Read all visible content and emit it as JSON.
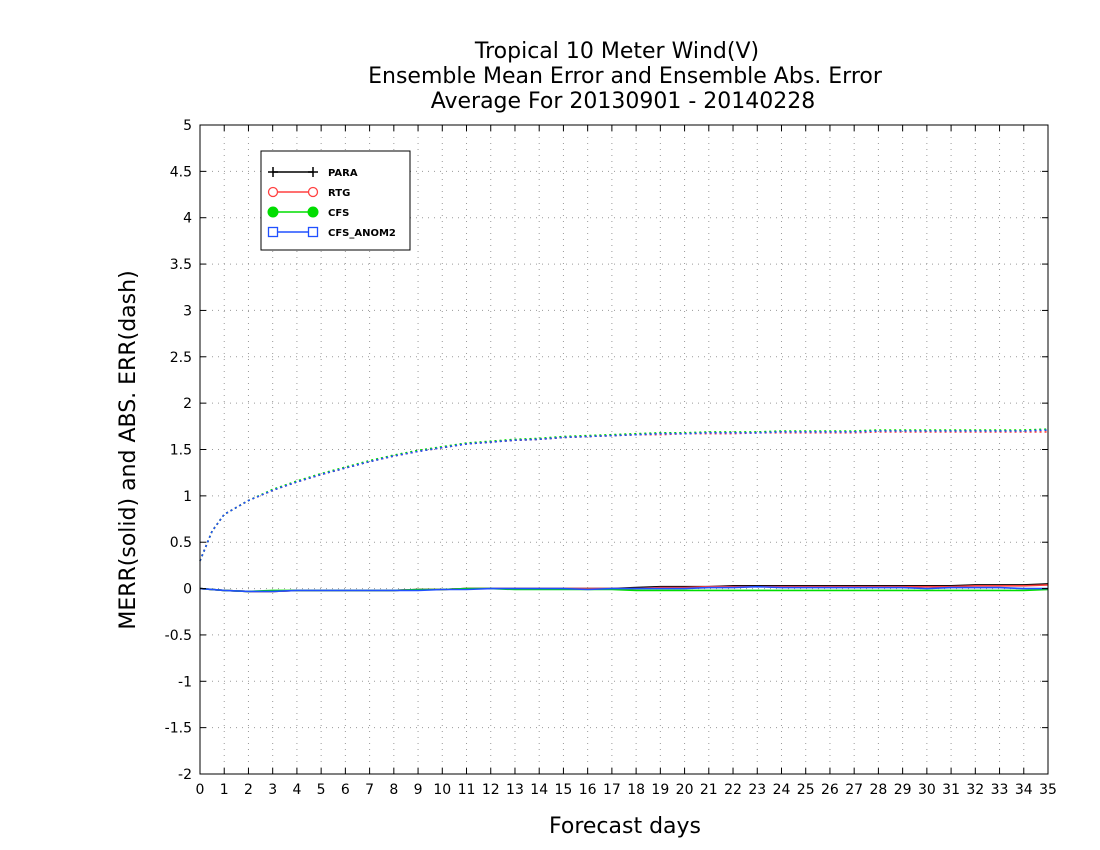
{
  "chart_data": {
    "type": "line",
    "title_lines": [
      "Tropical 10 Meter Wind(V)",
      "Ensemble Mean Error and Ensemble Abs. Error",
      "Average For 20130901 - 20140228"
    ],
    "xlabel": "Forecast days",
    "ylabel": "MERR(solid) and ABS. ERR(dash)",
    "xlim": [
      0,
      35
    ],
    "ylim": [
      -2,
      5
    ],
    "x_ticks": [
      "0",
      "1",
      "2",
      "3",
      "4",
      "5",
      "6",
      "7",
      "8",
      "9",
      "10",
      "11",
      "12",
      "13",
      "14",
      "15",
      "16",
      "17",
      "18",
      "19",
      "20",
      "21",
      "22",
      "23",
      "24",
      "25",
      "26",
      "27",
      "28",
      "29",
      "30",
      "31",
      "32",
      "33",
      "34",
      "35"
    ],
    "y_ticks": [
      "5",
      "4.5",
      "4",
      "3.5",
      "3",
      "2.5",
      "2",
      "1.5",
      "1",
      "0.5",
      "0",
      "-0.5",
      "-1",
      "-1.5",
      "-2"
    ],
    "grid": "dotted",
    "legend_position": "top-left",
    "series": [
      {
        "name": "PARA",
        "color": "#000000",
        "marker": "plus",
        "merr": [
          [
            0,
            0.0
          ],
          [
            1,
            -0.02
          ],
          [
            2,
            -0.03
          ],
          [
            3,
            -0.03
          ],
          [
            4,
            -0.02
          ],
          [
            5,
            -0.02
          ],
          [
            6,
            -0.02
          ],
          [
            7,
            -0.02
          ],
          [
            8,
            -0.02
          ],
          [
            9,
            -0.01
          ],
          [
            10,
            -0.01
          ],
          [
            11,
            0.0
          ],
          [
            12,
            0.0
          ],
          [
            13,
            0.0
          ],
          [
            14,
            0.0
          ],
          [
            15,
            0.0
          ],
          [
            16,
            0.0
          ],
          [
            17,
            0.0
          ],
          [
            18,
            0.01
          ],
          [
            19,
            0.02
          ],
          [
            20,
            0.02
          ],
          [
            21,
            0.02
          ],
          [
            22,
            0.03
          ],
          [
            23,
            0.03
          ],
          [
            24,
            0.03
          ],
          [
            25,
            0.03
          ],
          [
            26,
            0.03
          ],
          [
            27,
            0.03
          ],
          [
            28,
            0.03
          ],
          [
            29,
            0.03
          ],
          [
            30,
            0.03
          ],
          [
            31,
            0.03
          ],
          [
            32,
            0.04
          ],
          [
            33,
            0.04
          ],
          [
            34,
            0.04
          ],
          [
            35,
            0.05
          ]
        ],
        "abs_err": [
          [
            0,
            0.3
          ],
          [
            0.5,
            0.62
          ],
          [
            1,
            0.8
          ],
          [
            2,
            0.95
          ],
          [
            3,
            1.06
          ],
          [
            4,
            1.15
          ],
          [
            5,
            1.23
          ],
          [
            6,
            1.3
          ],
          [
            7,
            1.37
          ],
          [
            8,
            1.43
          ],
          [
            9,
            1.48
          ],
          [
            10,
            1.52
          ],
          [
            11,
            1.56
          ],
          [
            12,
            1.58
          ],
          [
            13,
            1.6
          ],
          [
            14,
            1.61
          ],
          [
            15,
            1.63
          ],
          [
            16,
            1.64
          ],
          [
            17,
            1.65
          ],
          [
            18,
            1.66
          ],
          [
            19,
            1.67
          ],
          [
            20,
            1.67
          ],
          [
            21,
            1.68
          ],
          [
            22,
            1.68
          ],
          [
            23,
            1.68
          ],
          [
            24,
            1.69
          ],
          [
            25,
            1.69
          ],
          [
            26,
            1.69
          ],
          [
            27,
            1.69
          ],
          [
            28,
            1.7
          ],
          [
            29,
            1.7
          ],
          [
            30,
            1.7
          ],
          [
            31,
            1.7
          ],
          [
            32,
            1.7
          ],
          [
            33,
            1.7
          ],
          [
            34,
            1.7
          ],
          [
            35,
            1.71
          ]
        ]
      },
      {
        "name": "RTG",
        "color": "#ff4040",
        "marker": "open-circle",
        "merr": [
          [
            0,
            0.0
          ],
          [
            1,
            -0.02
          ],
          [
            2,
            -0.03
          ],
          [
            3,
            -0.03
          ],
          [
            4,
            -0.02
          ],
          [
            5,
            -0.02
          ],
          [
            6,
            -0.02
          ],
          [
            7,
            -0.02
          ],
          [
            8,
            -0.02
          ],
          [
            9,
            -0.01
          ],
          [
            10,
            -0.01
          ],
          [
            11,
            0.0
          ],
          [
            12,
            0.0
          ],
          [
            13,
            0.0
          ],
          [
            14,
            0.0
          ],
          [
            15,
            0.0
          ],
          [
            16,
            0.0
          ],
          [
            17,
            0.0
          ],
          [
            18,
            0.0
          ],
          [
            19,
            0.01
          ],
          [
            20,
            0.01
          ],
          [
            21,
            0.02
          ],
          [
            22,
            0.02
          ],
          [
            23,
            0.02
          ],
          [
            24,
            0.02
          ],
          [
            25,
            0.02
          ],
          [
            26,
            0.02
          ],
          [
            27,
            0.02
          ],
          [
            28,
            0.02
          ],
          [
            29,
            0.02
          ],
          [
            30,
            0.02
          ],
          [
            31,
            0.02
          ],
          [
            32,
            0.03
          ],
          [
            33,
            0.03
          ],
          [
            34,
            0.03
          ],
          [
            35,
            0.04
          ]
        ],
        "abs_err": [
          [
            0,
            0.3
          ],
          [
            0.5,
            0.62
          ],
          [
            1,
            0.8
          ],
          [
            2,
            0.95
          ],
          [
            3,
            1.06
          ],
          [
            4,
            1.15
          ],
          [
            5,
            1.23
          ],
          [
            6,
            1.3
          ],
          [
            7,
            1.37
          ],
          [
            8,
            1.43
          ],
          [
            9,
            1.48
          ],
          [
            10,
            1.52
          ],
          [
            11,
            1.56
          ],
          [
            12,
            1.58
          ],
          [
            13,
            1.6
          ],
          [
            14,
            1.61
          ],
          [
            15,
            1.63
          ],
          [
            16,
            1.64
          ],
          [
            17,
            1.65
          ],
          [
            18,
            1.66
          ],
          [
            19,
            1.66
          ],
          [
            20,
            1.67
          ],
          [
            21,
            1.67
          ],
          [
            22,
            1.67
          ],
          [
            23,
            1.68
          ],
          [
            24,
            1.68
          ],
          [
            25,
            1.68
          ],
          [
            26,
            1.68
          ],
          [
            27,
            1.68
          ],
          [
            28,
            1.69
          ],
          [
            29,
            1.69
          ],
          [
            30,
            1.69
          ],
          [
            31,
            1.69
          ],
          [
            32,
            1.69
          ],
          [
            33,
            1.69
          ],
          [
            34,
            1.69
          ],
          [
            35,
            1.69
          ]
        ]
      },
      {
        "name": "CFS",
        "color": "#00dd00",
        "marker": "filled-circle",
        "merr": [
          [
            0,
            0.0
          ],
          [
            1,
            -0.02
          ],
          [
            2,
            -0.03
          ],
          [
            3,
            -0.02
          ],
          [
            4,
            -0.02
          ],
          [
            5,
            -0.02
          ],
          [
            6,
            -0.02
          ],
          [
            7,
            -0.02
          ],
          [
            8,
            -0.02
          ],
          [
            9,
            -0.01
          ],
          [
            10,
            -0.01
          ],
          [
            11,
            0.0
          ],
          [
            12,
            0.0
          ],
          [
            13,
            -0.01
          ],
          [
            14,
            -0.01
          ],
          [
            15,
            -0.01
          ],
          [
            16,
            -0.01
          ],
          [
            17,
            -0.01
          ],
          [
            18,
            -0.02
          ],
          [
            19,
            -0.02
          ],
          [
            20,
            -0.02
          ],
          [
            21,
            -0.02
          ],
          [
            22,
            -0.02
          ],
          [
            23,
            -0.02
          ],
          [
            24,
            -0.02
          ],
          [
            25,
            -0.02
          ],
          [
            26,
            -0.02
          ],
          [
            27,
            -0.02
          ],
          [
            28,
            -0.02
          ],
          [
            29,
            -0.02
          ],
          [
            30,
            -0.02
          ],
          [
            31,
            -0.02
          ],
          [
            32,
            -0.02
          ],
          [
            33,
            -0.02
          ],
          [
            34,
            -0.02
          ],
          [
            35,
            -0.01
          ]
        ],
        "abs_err": [
          [
            0,
            0.3
          ],
          [
            0.5,
            0.62
          ],
          [
            1,
            0.8
          ],
          [
            2,
            0.95
          ],
          [
            3,
            1.07
          ],
          [
            4,
            1.16
          ],
          [
            5,
            1.24
          ],
          [
            6,
            1.31
          ],
          [
            7,
            1.38
          ],
          [
            8,
            1.44
          ],
          [
            9,
            1.49
          ],
          [
            10,
            1.53
          ],
          [
            11,
            1.57
          ],
          [
            12,
            1.59
          ],
          [
            13,
            1.61
          ],
          [
            14,
            1.62
          ],
          [
            15,
            1.64
          ],
          [
            16,
            1.65
          ],
          [
            17,
            1.66
          ],
          [
            18,
            1.67
          ],
          [
            19,
            1.68
          ],
          [
            20,
            1.68
          ],
          [
            21,
            1.69
          ],
          [
            22,
            1.69
          ],
          [
            23,
            1.69
          ],
          [
            24,
            1.7
          ],
          [
            25,
            1.7
          ],
          [
            26,
            1.7
          ],
          [
            27,
            1.7
          ],
          [
            28,
            1.71
          ],
          [
            29,
            1.71
          ],
          [
            30,
            1.71
          ],
          [
            31,
            1.71
          ],
          [
            32,
            1.71
          ],
          [
            33,
            1.71
          ],
          [
            34,
            1.71
          ],
          [
            35,
            1.72
          ]
        ]
      },
      {
        "name": "CFS_ANOM2",
        "color": "#2050ff",
        "marker": "open-square",
        "merr": [
          [
            0,
            0.0
          ],
          [
            1,
            -0.02
          ],
          [
            2,
            -0.03
          ],
          [
            3,
            -0.03
          ],
          [
            4,
            -0.02
          ],
          [
            5,
            -0.02
          ],
          [
            6,
            -0.02
          ],
          [
            7,
            -0.02
          ],
          [
            8,
            -0.02
          ],
          [
            9,
            -0.02
          ],
          [
            10,
            -0.01
          ],
          [
            11,
            -0.01
          ],
          [
            12,
            0.0
          ],
          [
            13,
            0.0
          ],
          [
            14,
            0.0
          ],
          [
            15,
            0.0
          ],
          [
            16,
            -0.01
          ],
          [
            17,
            0.0
          ],
          [
            18,
            0.0
          ],
          [
            19,
            0.0
          ],
          [
            20,
            0.0
          ],
          [
            21,
            0.01
          ],
          [
            22,
            0.01
          ],
          [
            23,
            0.02
          ],
          [
            24,
            0.01
          ],
          [
            25,
            0.01
          ],
          [
            26,
            0.01
          ],
          [
            27,
            0.01
          ],
          [
            28,
            0.01
          ],
          [
            29,
            0.01
          ],
          [
            30,
            0.0
          ],
          [
            31,
            0.01
          ],
          [
            32,
            0.01
          ],
          [
            33,
            0.01
          ],
          [
            34,
            0.0
          ],
          [
            35,
            0.0
          ]
        ],
        "abs_err": [
          [
            0,
            0.3
          ],
          [
            0.5,
            0.62
          ],
          [
            1,
            0.8
          ],
          [
            2,
            0.95
          ],
          [
            3,
            1.06
          ],
          [
            4,
            1.15
          ],
          [
            5,
            1.23
          ],
          [
            6,
            1.3
          ],
          [
            7,
            1.37
          ],
          [
            8,
            1.43
          ],
          [
            9,
            1.48
          ],
          [
            10,
            1.52
          ],
          [
            11,
            1.56
          ],
          [
            12,
            1.58
          ],
          [
            13,
            1.6
          ],
          [
            14,
            1.61
          ],
          [
            15,
            1.63
          ],
          [
            16,
            1.64
          ],
          [
            17,
            1.65
          ],
          [
            18,
            1.66
          ],
          [
            19,
            1.67
          ],
          [
            20,
            1.67
          ],
          [
            21,
            1.68
          ],
          [
            22,
            1.68
          ],
          [
            23,
            1.68
          ],
          [
            24,
            1.69
          ],
          [
            25,
            1.69
          ],
          [
            26,
            1.69
          ],
          [
            27,
            1.69
          ],
          [
            28,
            1.7
          ],
          [
            29,
            1.7
          ],
          [
            30,
            1.7
          ],
          [
            31,
            1.7
          ],
          [
            32,
            1.7
          ],
          [
            33,
            1.7
          ],
          [
            34,
            1.7
          ],
          [
            35,
            1.71
          ]
        ]
      }
    ]
  }
}
